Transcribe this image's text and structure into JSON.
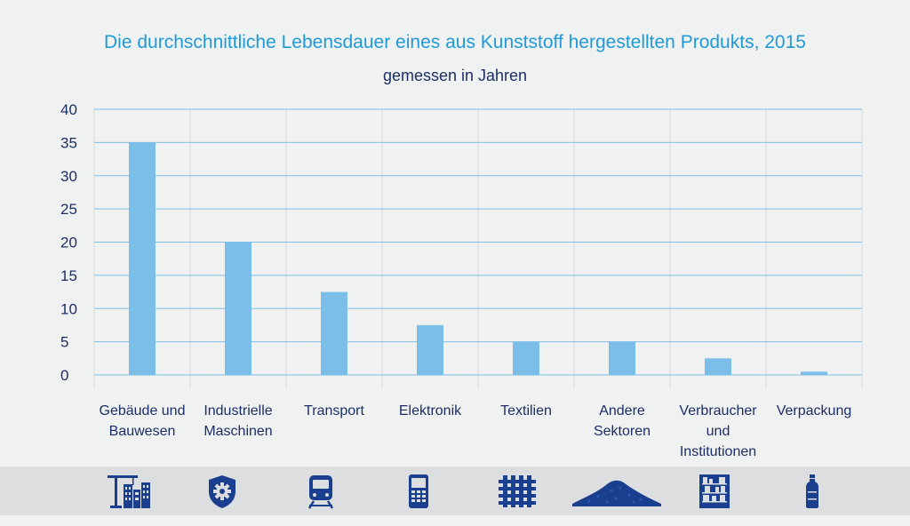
{
  "chart_data": {
    "type": "bar",
    "title": "Die durchschnittliche Lebensdauer eines aus Kunststoff hergestellten Produkts, 2015",
    "subtitle": "gemessen in Jahren",
    "categories": [
      [
        "Gebäude und",
        "Bauwesen"
      ],
      [
        "Industrielle",
        "Maschinen"
      ],
      [
        "Transport"
      ],
      [
        "Elektronik"
      ],
      [
        "Textilien"
      ],
      [
        "Andere",
        "Sektoren"
      ],
      [
        "Verbraucher",
        "und",
        "Institutionen"
      ],
      [
        "Verpackung"
      ]
    ],
    "values": [
      35,
      20,
      12.5,
      7.5,
      5,
      5,
      2.5,
      0.5
    ],
    "ylim": [
      0,
      40
    ],
    "yticks": [
      0,
      5,
      10,
      15,
      20,
      25,
      30,
      35,
      40
    ],
    "grid": true,
    "colors": {
      "bar": "#7bbfe8",
      "grid": "#7bbfe8",
      "text": "#1b2f66",
      "title": "#1f9ad6",
      "icon": "#1b3f8f"
    }
  },
  "icons": [
    "building-crane-icon",
    "gear-shield-icon",
    "train-icon",
    "mobile-phone-icon",
    "textile-weave-icon",
    "granulate-pile-icon",
    "shelves-icon",
    "bottle-icon"
  ]
}
